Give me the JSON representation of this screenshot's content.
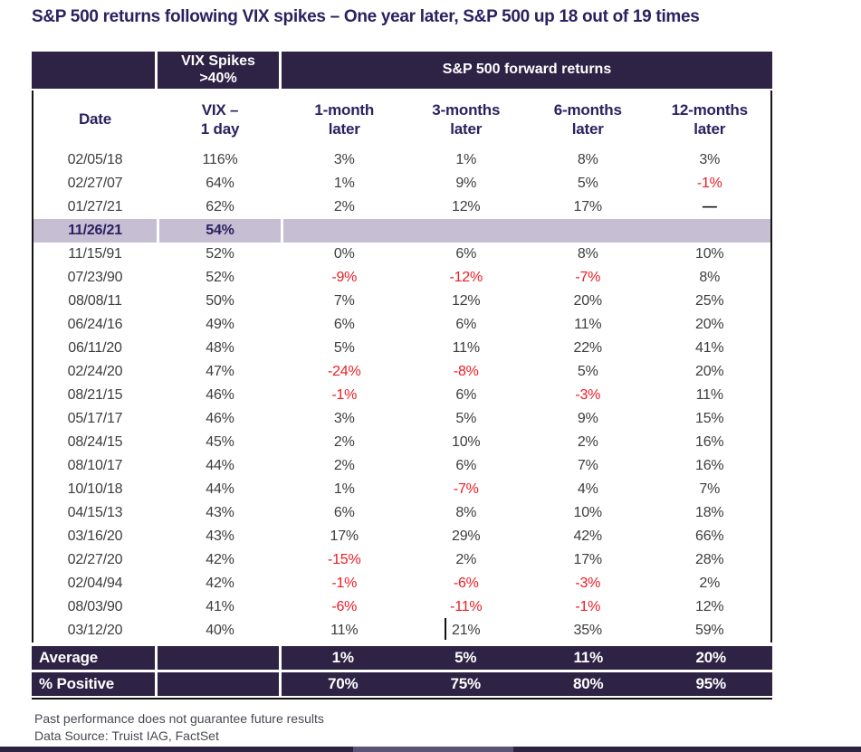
{
  "chart_data": {
    "type": "table",
    "title": "S&P 500 returns following VIX spikes – One year later, S&P 500 up 18 out of 19 times",
    "band_headers": {
      "vix_spikes": [
        "VIX Spikes",
        ">40%"
      ],
      "forward_returns": "S&P 500 forward returns"
    },
    "columns": [
      [
        "Date",
        ""
      ],
      [
        "VIX –",
        "1 day"
      ],
      [
        "1-month",
        "later"
      ],
      [
        "3-months",
        "later"
      ],
      [
        "6-months",
        "later"
      ],
      [
        "12-months",
        "later"
      ]
    ],
    "rows": [
      [
        "02/05/18",
        "116%",
        "3%",
        "1%",
        "8%",
        "3%"
      ],
      [
        "02/27/07",
        "64%",
        "1%",
        "9%",
        "5%",
        "-1%"
      ],
      [
        "01/27/21",
        "62%",
        "2%",
        "12%",
        "17%",
        "—"
      ],
      [
        "11/26/21",
        "54%",
        "",
        "",
        "",
        ""
      ],
      [
        "11/15/91",
        "52%",
        "0%",
        "6%",
        "8%",
        "10%"
      ],
      [
        "07/23/90",
        "52%",
        "-9%",
        "-12%",
        "-7%",
        "8%"
      ],
      [
        "08/08/11",
        "50%",
        "7%",
        "12%",
        "20%",
        "25%"
      ],
      [
        "06/24/16",
        "49%",
        "6%",
        "6%",
        "11%",
        "20%"
      ],
      [
        "06/11/20",
        "48%",
        "5%",
        "11%",
        "22%",
        "41%"
      ],
      [
        "02/24/20",
        "47%",
        "-24%",
        "-8%",
        "5%",
        "20%"
      ],
      [
        "08/21/15",
        "46%",
        "-1%",
        "6%",
        "-3%",
        "11%"
      ],
      [
        "05/17/17",
        "46%",
        "3%",
        "5%",
        "9%",
        "15%"
      ],
      [
        "08/24/15",
        "45%",
        "2%",
        "10%",
        "2%",
        "16%"
      ],
      [
        "08/10/17",
        "44%",
        "2%",
        "6%",
        "7%",
        "16%"
      ],
      [
        "10/10/18",
        "44%",
        "1%",
        "-7%",
        "4%",
        "7%"
      ],
      [
        "04/15/13",
        "43%",
        "6%",
        "8%",
        "10%",
        "18%"
      ],
      [
        "03/16/20",
        "43%",
        "17%",
        "29%",
        "42%",
        "66%"
      ],
      [
        "02/27/20",
        "42%",
        "-15%",
        "2%",
        "17%",
        "28%"
      ],
      [
        "02/04/94",
        "42%",
        "-1%",
        "-6%",
        "-3%",
        "2%"
      ],
      [
        "08/03/90",
        "41%",
        "-6%",
        "-11%",
        "-1%",
        "12%"
      ],
      [
        "03/12/20",
        "40%",
        "11%",
        "21%",
        "35%",
        "59%"
      ]
    ],
    "highlight_date": "11/26/21",
    "no_data_symbol": "—",
    "summary_rows": [
      [
        "Average",
        "",
        "1%",
        "5%",
        "11%",
        "20%"
      ],
      [
        "% Positive",
        "",
        "70%",
        "75%",
        "80%",
        "95%"
      ]
    ]
  },
  "colors": {
    "accent_dark": "#2e2245",
    "header_text": "#2b2160",
    "highlight_bg": "#c6bfd3",
    "negative": "#ed1b24"
  },
  "footnotes": {
    "line1": "Past performance does not guarantee future results",
    "line2": "Data Source: Truist IAG, FactSet"
  }
}
